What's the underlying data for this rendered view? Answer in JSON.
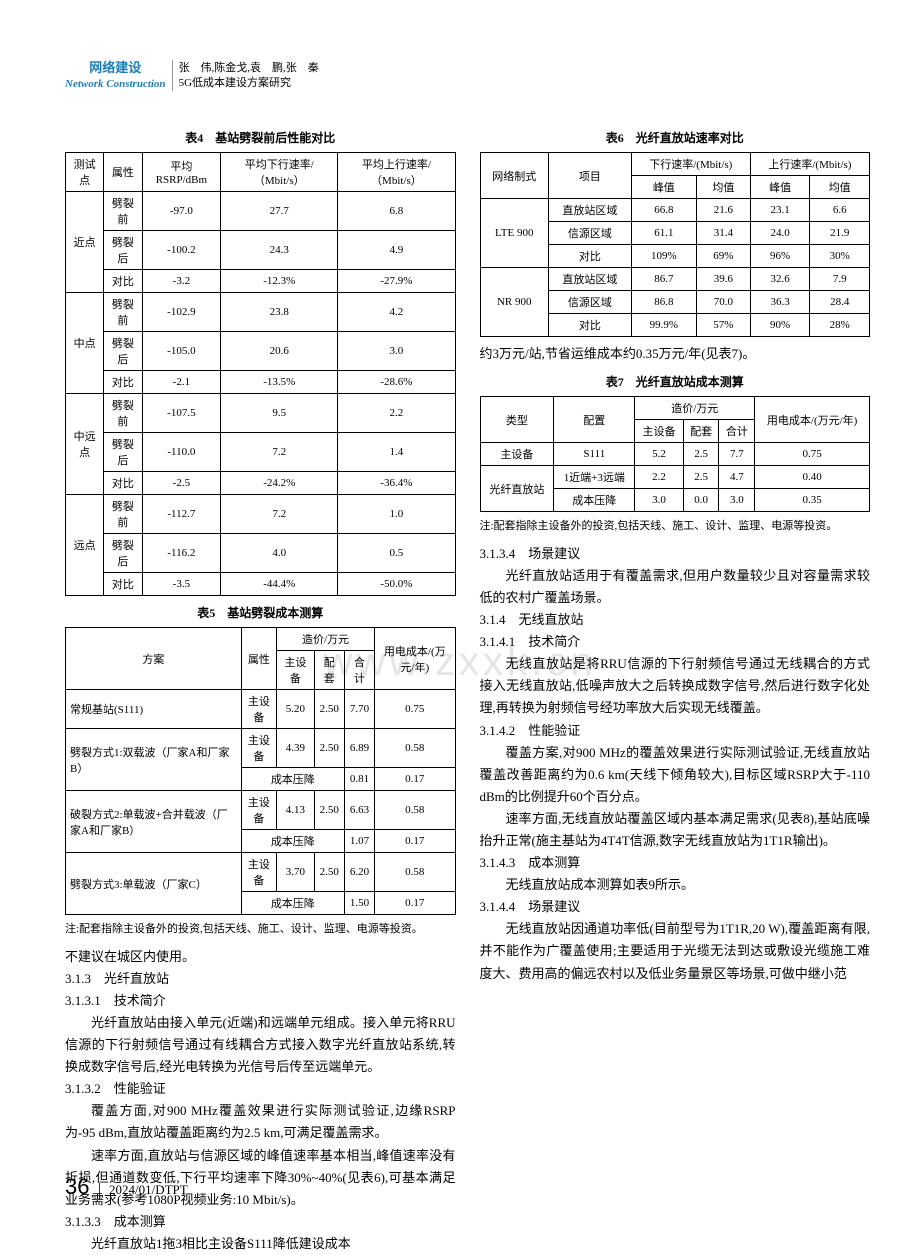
{
  "header": {
    "section_cn": "网络建设",
    "section_en": "Network Construction",
    "authors": "张　伟,陈金戈,袁　鹏,张　秦",
    "title": "5G低成本建设方案研究"
  },
  "watermark": "www.zxxk.cn",
  "table4": {
    "title": "表4　基站劈裂前后性能对比",
    "columns": [
      "测试点",
      "属性",
      "平均RSRP/dBm",
      "平均下行速率/（Mbit/s）",
      "平均上行速率/（Mbit/s）"
    ],
    "groups": [
      {
        "name": "近点",
        "rows": [
          [
            "劈裂前",
            "-97.0",
            "27.7",
            "6.8"
          ],
          [
            "劈裂后",
            "-100.2",
            "24.3",
            "4.9"
          ],
          [
            "对比",
            "-3.2",
            "-12.3%",
            "-27.9%"
          ]
        ]
      },
      {
        "name": "中点",
        "rows": [
          [
            "劈裂前",
            "-102.9",
            "23.8",
            "4.2"
          ],
          [
            "劈裂后",
            "-105.0",
            "20.6",
            "3.0"
          ],
          [
            "对比",
            "-2.1",
            "-13.5%",
            "-28.6%"
          ]
        ]
      },
      {
        "name": "中远点",
        "rows": [
          [
            "劈裂前",
            "-107.5",
            "9.5",
            "2.2"
          ],
          [
            "劈裂后",
            "-110.0",
            "7.2",
            "1.4"
          ],
          [
            "对比",
            "-2.5",
            "-24.2%",
            "-36.4%"
          ]
        ]
      },
      {
        "name": "远点",
        "rows": [
          [
            "劈裂前",
            "-112.7",
            "7.2",
            "1.0"
          ],
          [
            "劈裂后",
            "-116.2",
            "4.0",
            "0.5"
          ],
          [
            "对比",
            "-3.5",
            "-44.4%",
            "-50.0%"
          ]
        ]
      }
    ]
  },
  "table5": {
    "title": "表5　基站劈裂成本测算",
    "head1": [
      "方案",
      "属性",
      "造价/万元",
      "用电成本/(万元/年)"
    ],
    "head2": [
      "主设备",
      "配套",
      "合计"
    ],
    "rows": [
      {
        "plan": "常规基站(S111)",
        "attr": "主设备",
        "c1": "5.20",
        "c2": "2.50",
        "c3": "7.70",
        "c4": "0.75"
      },
      {
        "plan": "劈裂方式1:双载波（厂家A和厂家B）",
        "attr": "主设备",
        "c1": "4.39",
        "c2": "2.50",
        "c3": "6.89",
        "c4": "0.58",
        "sub": {
          "attr": "成本压降",
          "c3": "0.81",
          "c4": "0.17"
        }
      },
      {
        "plan": "破裂方式2:单载波+合并载波（厂家A和厂家B）",
        "attr": "主设备",
        "c1": "4.13",
        "c2": "2.50",
        "c3": "6.63",
        "c4": "0.58",
        "sub": {
          "attr": "成本压降",
          "c3": "1.07",
          "c4": "0.17"
        }
      },
      {
        "plan": "劈裂方式3:单载波（厂家C）",
        "attr": "主设备",
        "c1": "3.70",
        "c2": "2.50",
        "c3": "6.20",
        "c4": "0.58",
        "sub": {
          "attr": "成本压降",
          "c3": "1.50",
          "c4": "0.17"
        }
      }
    ],
    "note": "注:配套指除主设备外的投资,包括天线、施工、设计、监理、电源等投资。"
  },
  "left_body": {
    "p1": "不建议在城区内使用。",
    "s313": "3.1.3　光纤直放站",
    "s3131": "3.1.3.1　技术简介",
    "p2": "光纤直放站由接入单元(近端)和远端单元组成。接入单元将RRU信源的下行射频信号通过有线耦合方式接入数字光纤直放站系统,转换成数字信号后,经光电转换为光信号后传至远端单元。",
    "s3132": "3.1.3.2　性能验证",
    "p3": "覆盖方面,对900 MHz覆盖效果进行实际测试验证,边缘RSRP为-95 dBm,直放站覆盖距离约为2.5 km,可满足覆盖需求。",
    "p4": "速率方面,直放站与信源区域的峰值速率基本相当,峰值速率没有折损,但通道数变低,下行平均速率下降30%~40%(见表6),可基本满足业务需求(参考1080P视频业务:10 Mbit/s)。",
    "s3133": "3.1.3.3　成本测算",
    "p5": "光纤直放站1拖3相比主设备S111降低建设成本"
  },
  "table6": {
    "title": "表6　光纤直放站速率对比",
    "head1": [
      "网络制式",
      "项目",
      "下行速率/(Mbit/s)",
      "上行速率/(Mbit/s)"
    ],
    "head2": [
      "峰值",
      "均值",
      "峰值",
      "均值"
    ],
    "groups": [
      {
        "name": "LTE 900",
        "rows": [
          [
            "直放站区域",
            "66.8",
            "21.6",
            "23.1",
            "6.6"
          ],
          [
            "信源区域",
            "61.1",
            "31.4",
            "24.0",
            "21.9"
          ],
          [
            "对比",
            "109%",
            "69%",
            "96%",
            "30%"
          ]
        ]
      },
      {
        "name": "NR 900",
        "rows": [
          [
            "直放站区域",
            "86.7",
            "39.6",
            "32.6",
            "7.9"
          ],
          [
            "信源区域",
            "86.8",
            "70.0",
            "36.3",
            "28.4"
          ],
          [
            "对比",
            "99.9%",
            "57%",
            "90%",
            "28%"
          ]
        ]
      }
    ]
  },
  "r_p1": "约3万元/站,节省运维成本约0.35万元/年(见表7)。",
  "table7": {
    "title": "表7　光纤直放站成本测算",
    "head1": [
      "类型",
      "配置",
      "造价/万元",
      "用电成本/(万元/年)"
    ],
    "head2": [
      "主设备",
      "配套",
      "合计"
    ],
    "rows": [
      {
        "type": "主设备",
        "cfg": "S111",
        "c1": "5.2",
        "c2": "2.5",
        "c3": "7.7",
        "c4": "0.75"
      },
      {
        "type": "光纤直放站",
        "cfg": "1近端+3远端",
        "c1": "2.2",
        "c2": "2.5",
        "c3": "4.7",
        "c4": "0.40",
        "sub": {
          "cfg": "成本压降",
          "c1": "3.0",
          "c2": "0.0",
          "c3": "3.0",
          "c4": "0.35"
        }
      }
    ],
    "note": "注:配套指除主设备外的投资,包括天线、施工、设计、监理、电源等投资。"
  },
  "right_body": {
    "s3134": "3.1.3.4　场景建议",
    "p2": "光纤直放站适用于有覆盖需求,但用户数量较少且对容量需求较低的农村广覆盖场景。",
    "s314": "3.1.4　无线直放站",
    "s3141": "3.1.4.1　技术简介",
    "p3": "无线直放站是将RRU信源的下行射频信号通过无线耦合的方式接入无线直放站,低噪声放大之后转换成数字信号,然后进行数字化处理,再转换为射频信号经功率放大后实现无线覆盖。",
    "s3142": "3.1.4.2　性能验证",
    "p4": "覆盖方案,对900 MHz的覆盖效果进行实际测试验证,无线直放站覆盖改善距离约为0.6 km(天线下倾角较大),目标区域RSRP大于-110 dBm的比例提升60个百分点。",
    "p5": "速率方面,无线直放站覆盖区域内基本满足需求(见表8),基站底噪抬升正常(施主基站为4T4T信源,数字无线直放站为1T1R输出)。",
    "s3143": "3.1.4.3　成本测算",
    "p6": "无线直放站成本测算如表9所示。",
    "s3144": "3.1.4.4　场景建议",
    "p7": "无线直放站因通道功率低(目前型号为1T1R,20 W),覆盖距离有限,并不能作为广覆盖使用;主要适用于光缆无法到达或敷设光缆施工难度大、费用高的偏远农村以及低业务量景区等场景,可做中继小范"
  },
  "footer": {
    "page": "36",
    "right": "2024/01/DTPT"
  }
}
